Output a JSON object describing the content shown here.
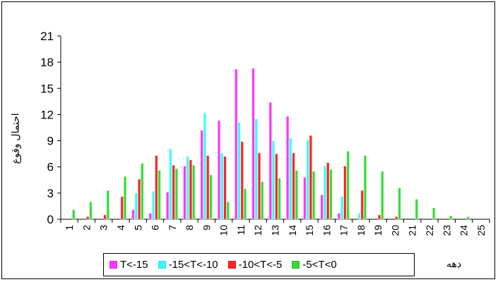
{
  "chart_data": {
    "type": "bar",
    "title": "",
    "xlabel": "دهه",
    "ylabel": "احتمال وقوع",
    "ylim": [
      0,
      21
    ],
    "yticks": [
      0,
      3,
      6,
      9,
      12,
      15,
      18,
      21
    ],
    "grid": false,
    "legend_position": "bottom",
    "categories": [
      "1",
      "2",
      "3",
      "4",
      "5",
      "6",
      "7",
      "8",
      "9",
      "10",
      "11",
      "12",
      "13",
      "14",
      "15",
      "16",
      "17",
      "18",
      "19",
      "20",
      "21",
      "22",
      "23",
      "24",
      "25"
    ],
    "series": [
      {
        "name": "T<-15",
        "color": "#ff33ff",
        "values": [
          0,
          0,
          0,
          0,
          1.1,
          0.7,
          3.1,
          6.1,
          10.2,
          11.3,
          17.2,
          17.3,
          13.4,
          11.8,
          4.8,
          2.8,
          0.7,
          0,
          0,
          0,
          0,
          0,
          0,
          0,
          0
        ]
      },
      {
        "name": "-15<T<-10",
        "color": "#33ffff",
        "values": [
          0,
          0,
          0,
          0,
          3.0,
          3.2,
          8.1,
          7.2,
          12.2,
          7.6,
          11.1,
          11.5,
          9.0,
          9.3,
          9.1,
          6.1,
          2.6,
          0.7,
          0,
          0,
          0,
          0,
          0,
          0,
          0
        ]
      },
      {
        "name": "-10<T<-5",
        "color": "#ff2222",
        "values": [
          0,
          0.3,
          0.5,
          2.6,
          4.6,
          7.3,
          6.2,
          6.8,
          7.3,
          7.2,
          8.9,
          7.6,
          7.5,
          7.6,
          9.6,
          6.5,
          6.1,
          3.3,
          0.5,
          0.3,
          0,
          0,
          0,
          0,
          0
        ]
      },
      {
        "name": "-5<T<0",
        "color": "#33dd33",
        "values": [
          1.1,
          2.0,
          3.3,
          4.9,
          6.4,
          5.6,
          5.8,
          6.2,
          5.1,
          2.0,
          3.5,
          4.3,
          4.7,
          5.6,
          5.5,
          5.7,
          7.8,
          7.3,
          5.5,
          3.6,
          2.3,
          1.3,
          0.4,
          0.3,
          0
        ]
      }
    ]
  }
}
